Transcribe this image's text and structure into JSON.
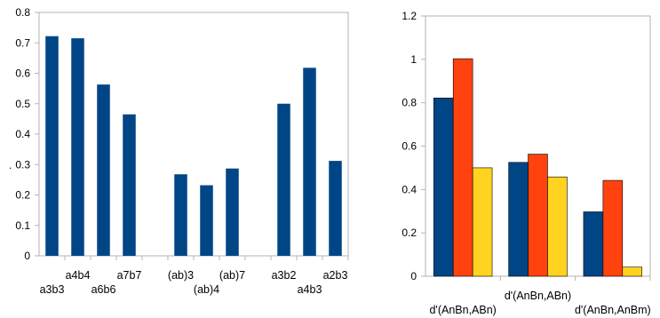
{
  "chart_data": [
    {
      "type": "bar",
      "categories": [
        "a3b3",
        "a4b4",
        "a6b6",
        "a7b7",
        "",
        "(ab)3",
        "(ab)4",
        "(ab)7",
        "",
        "a3b2",
        "a4b3",
        "a2b3"
      ],
      "values": [
        0.722,
        0.715,
        0.563,
        0.465,
        null,
        0.268,
        0.232,
        0.287,
        null,
        0.5,
        0.618,
        0.312
      ],
      "ylim": [
        0,
        0.8
      ],
      "yticks": [
        "0",
        "0.1",
        "0.2",
        "0.3",
        "0.4",
        "0.5",
        "0.6",
        "0.7",
        "0.8"
      ],
      "ylabel": ".",
      "grid": false,
      "color": "#004586"
    },
    {
      "type": "bar",
      "categories": [
        "d'(AnBn,ABn)",
        "d'(AnBn,ABn)",
        "d'(AnBn,AnBm)"
      ],
      "series": [
        {
          "values": [
            0.822,
            0.525,
            0.297
          ],
          "color": "#004586"
        },
        {
          "values": [
            1.003,
            0.563,
            0.442
          ],
          "color": "#ff420e"
        },
        {
          "values": [
            0.5,
            0.458,
            0.042
          ],
          "color": "#ffd320"
        }
      ],
      "ylim": [
        0,
        1.2
      ],
      "yticks": [
        "0",
        "0.2",
        "0.4",
        "0.6",
        "0.8",
        "1",
        "1.2"
      ],
      "grid": false
    }
  ]
}
